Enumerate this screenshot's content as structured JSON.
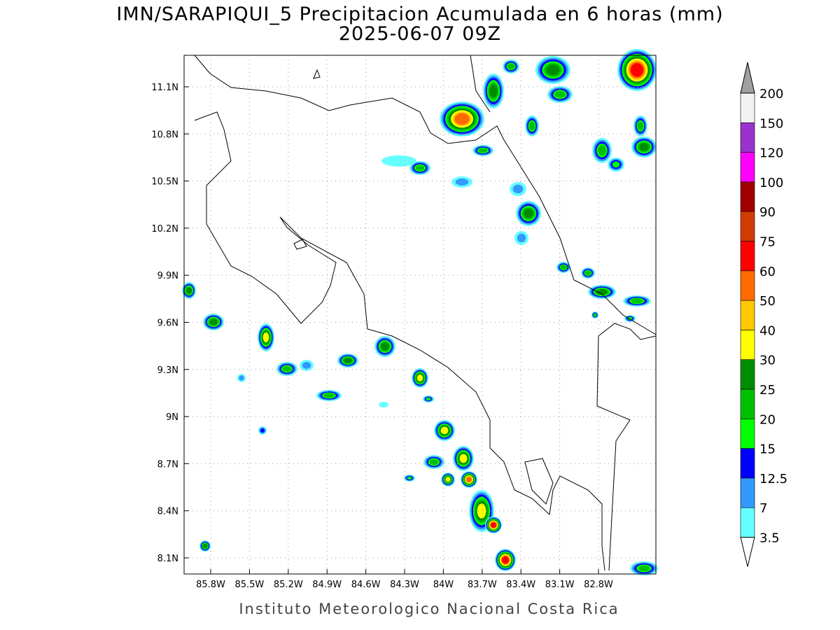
{
  "title": [
    "IMN/SARAPIQUI_5 Precipitacion Acumulada en 6 horas (mm)",
    "2025-06-07 09Z"
  ],
  "map": {
    "lat_labels": [
      "11.1N",
      "10.8N",
      "10.5N",
      "10.2N",
      "9.9N",
      "9.6N",
      "9.3N",
      "9N",
      "8.7N",
      "8.4N",
      "8.1N"
    ],
    "lon_labels": [
      "85.8W",
      "85.5W",
      "85.2W",
      "84.9W",
      "84.6W",
      "84.3W",
      "84W",
      "83.7W",
      "83.4W",
      "83.1W",
      "82.8W"
    ]
  },
  "colorbar": {
    "levels": [
      3.5,
      7,
      12.5,
      15,
      20,
      25,
      30,
      40,
      50,
      60,
      75,
      90,
      100,
      120,
      150,
      200
    ],
    "colors": [
      "#66ffff",
      "#3399ff",
      "#0000ff",
      "#00ff00",
      "#00c000",
      "#008c00",
      "#ffff00",
      "#ffc800",
      "#ff6a00",
      "#ff0000",
      "#d33c00",
      "#a00000",
      "#ff00ff",
      "#9a32cd",
      "#f2f2f2"
    ],
    "over_color": "#a0a0a0"
  },
  "footer": "Instituto Meteorologico Nacional Costa Rica"
}
